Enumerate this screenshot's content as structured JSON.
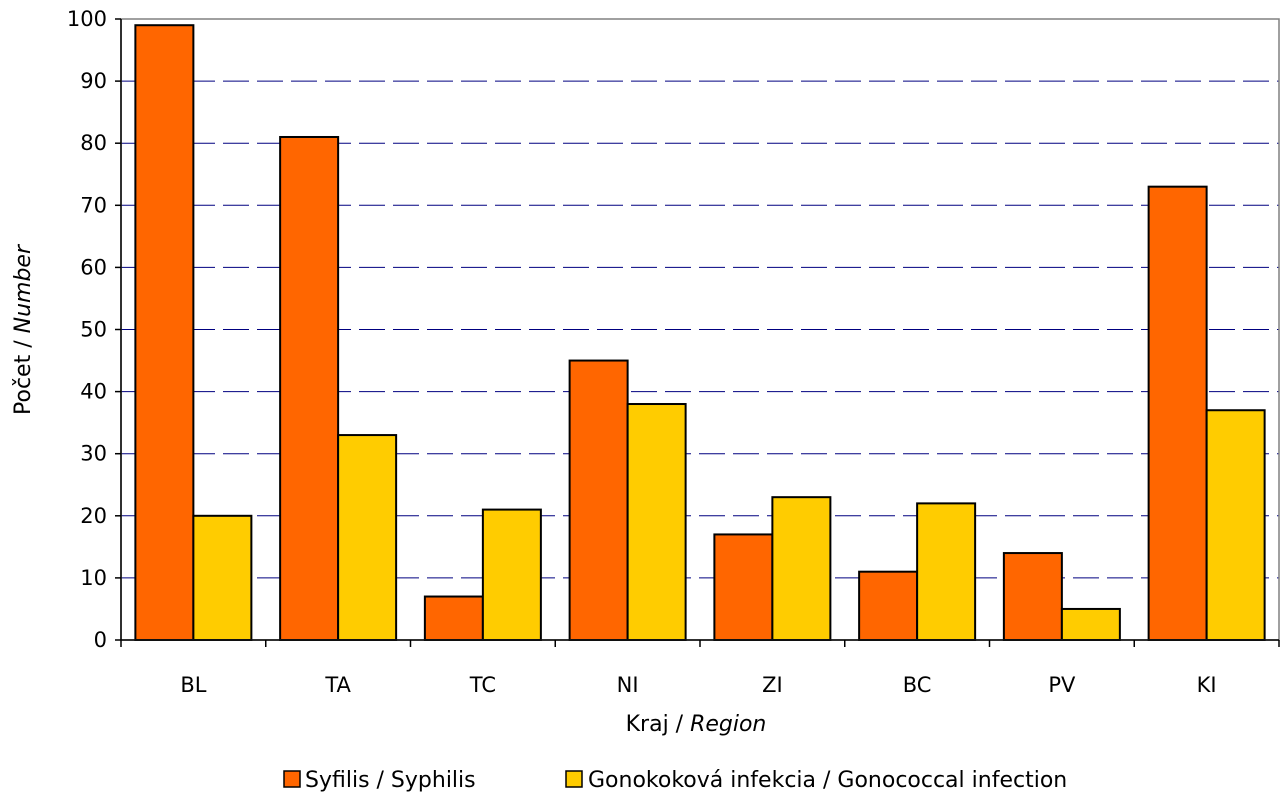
{
  "chart_data": {
    "type": "bar",
    "categories": [
      "BL",
      "TA",
      "TC",
      "NI",
      "ZI",
      "BC",
      "PV",
      "KI"
    ],
    "series": [
      {
        "name": "Syfilis / Syphilis",
        "color": "#ff6600",
        "values": [
          99,
          81,
          7,
          45,
          17,
          11,
          14,
          73
        ]
      },
      {
        "name": "Gonokoková infekcia / Gonococcal infection",
        "color": "#ffcc00",
        "values": [
          20,
          33,
          21,
          38,
          23,
          22,
          5,
          37
        ]
      }
    ],
    "ylim": [
      0,
      100
    ],
    "yticks": [
      "0",
      "10",
      "20",
      "30",
      "40",
      "50",
      "60",
      "70",
      "80",
      "90",
      "100"
    ],
    "xlabel_main": "Kraj / ",
    "xlabel_italic": "Region",
    "ylabel_main": "Počet / ",
    "ylabel_italic": "Number",
    "grid": true,
    "grid_color": "#000080",
    "legend_position": "bottom"
  }
}
